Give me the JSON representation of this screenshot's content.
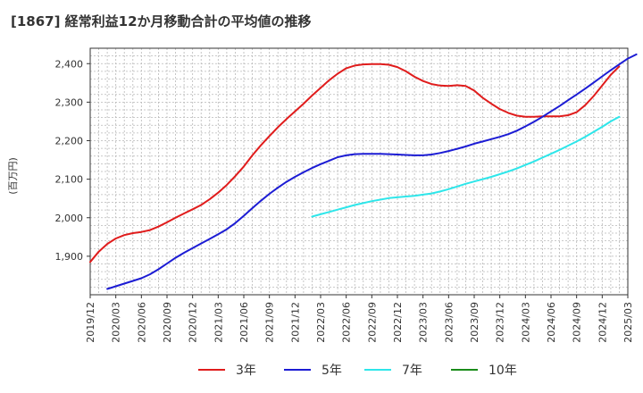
{
  "chart_data": {
    "type": "line",
    "title": "[1867]  経常利益12か月移動合計の平均値の推移",
    "ylabel": "(百万円)",
    "xlabel": "",
    "ylim": [
      1800,
      2440
    ],
    "yticks": [
      1900,
      2000,
      2100,
      2200,
      2300,
      2400
    ],
    "ytick_labels": [
      "1,900",
      "2,000",
      "2,100",
      "2,200",
      "2,300",
      "2,400"
    ],
    "xticks": [
      "2019/12",
      "2020/03",
      "2020/06",
      "2020/09",
      "2020/12",
      "2021/03",
      "2021/06",
      "2021/09",
      "2021/12",
      "2022/03",
      "2022/06",
      "2022/09",
      "2022/12",
      "2023/03",
      "2023/06",
      "2023/09",
      "2023/12",
      "2024/03",
      "2024/06",
      "2024/09",
      "2024/12",
      "2025/03"
    ],
    "grid": true,
    "legend_position": "bottom",
    "series": [
      {
        "name": "3年",
        "color": "#e01c1c",
        "start": "2019/12",
        "values": [
          1885,
          1912,
          1932,
          1946,
          1955,
          1960,
          1963,
          1968,
          1977,
          1988,
          2000,
          2011,
          2022,
          2033,
          2048,
          2065,
          2085,
          2108,
          2133,
          2162,
          2188,
          2212,
          2235,
          2256,
          2276,
          2296,
          2317,
          2337,
          2357,
          2374,
          2388,
          2395,
          2398,
          2399,
          2399,
          2397,
          2391,
          2380,
          2366,
          2355,
          2347,
          2343,
          2342,
          2344,
          2342,
          2330,
          2311,
          2296,
          2282,
          2272,
          2265,
          2262,
          2262,
          2263,
          2263,
          2263,
          2266,
          2274,
          2292,
          2316,
          2343,
          2371,
          2393
        ]
      },
      {
        "name": "5年",
        "color": "#1c1cd4",
        "start": "2020/02",
        "values": [
          1815,
          1822,
          1829,
          1836,
          1843,
          1853,
          1866,
          1881,
          1896,
          1909,
          1921,
          1933,
          1945,
          1957,
          1970,
          1986,
          2005,
          2025,
          2044,
          2062,
          2078,
          2093,
          2106,
          2118,
          2129,
          2139,
          2148,
          2157,
          2162,
          2165,
          2166,
          2166,
          2166,
          2165,
          2164,
          2163,
          2162,
          2162,
          2164,
          2168,
          2173,
          2179,
          2185,
          2192,
          2198,
          2204,
          2210,
          2217,
          2226,
          2237,
          2249,
          2262,
          2276,
          2290,
          2305,
          2320,
          2335,
          2351,
          2367,
          2383,
          2398,
          2413,
          2424
        ]
      },
      {
        "name": "7年",
        "color": "#2ee6ea",
        "start": "2022/02",
        "values": [
          2003,
          2009,
          2015,
          2021,
          2027,
          2033,
          2038,
          2043,
          2047,
          2051,
          2053,
          2055,
          2057,
          2060,
          2063,
          2068,
          2074,
          2081,
          2088,
          2094,
          2100,
          2106,
          2113,
          2120,
          2128,
          2137,
          2146,
          2156,
          2166,
          2176,
          2187,
          2198,
          2210,
          2223,
          2236,
          2250,
          2262
        ]
      },
      {
        "name": "10年",
        "color": "#1a8c1a",
        "start": "2024/12",
        "values": []
      }
    ]
  }
}
